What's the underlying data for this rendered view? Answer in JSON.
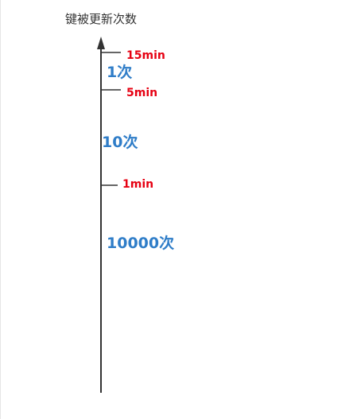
{
  "axis": {
    "title": "键被更新次数"
  },
  "ticks": [
    {
      "label": "15min"
    },
    {
      "label": "5min"
    },
    {
      "label": "1min"
    }
  ],
  "counts": [
    {
      "label": "1次"
    },
    {
      "label": "10次"
    },
    {
      "label": "10000次"
    }
  ],
  "colors": {
    "tick_label": "#e60012",
    "count_label": "#2f7dc8",
    "axis_line": "#333333"
  }
}
